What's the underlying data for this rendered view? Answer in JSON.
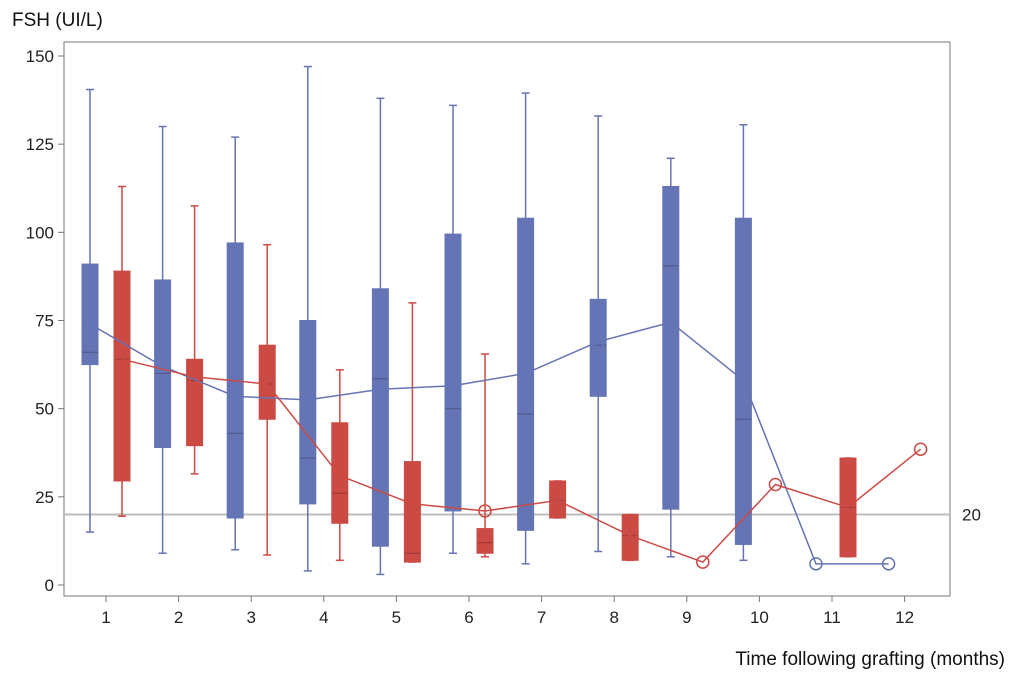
{
  "chart_data": {
    "type": "box",
    "ylabel": "FSH (UI/L)",
    "xlabel": "Time following grafting (months)",
    "ylim": [
      0,
      150
    ],
    "yticks": [
      0,
      25,
      50,
      75,
      100,
      125,
      150
    ],
    "categories": [
      "1",
      "2",
      "3",
      "4",
      "5",
      "6",
      "7",
      "8",
      "9",
      "10",
      "11",
      "12"
    ],
    "reference_line": {
      "value": 20,
      "label": "20"
    },
    "grid": false,
    "colors": {
      "blue": "#6474b4",
      "red": "#cc4a44",
      "axis": "#777777",
      "refline": "#bcbcbc"
    },
    "series": [
      {
        "color": "blue",
        "boxes": [
          {
            "x": 1,
            "min": 15,
            "q1": 62.5,
            "median": 66,
            "q3": 91,
            "max": 140.5
          },
          {
            "x": 2,
            "min": 9,
            "q1": 39,
            "median": 60,
            "q3": 86.5,
            "max": 130
          },
          {
            "x": 3,
            "min": 10,
            "q1": 19,
            "median": 43,
            "q3": 97,
            "max": 127
          },
          {
            "x": 4,
            "min": 4,
            "q1": 23,
            "median": 36,
            "q3": 75,
            "max": 147
          },
          {
            "x": 5,
            "min": 3,
            "q1": 11,
            "median": 58.5,
            "q3": 84,
            "max": 138
          },
          {
            "x": 6,
            "min": 9,
            "q1": 21,
            "median": 50,
            "q3": 99.5,
            "max": 136
          },
          {
            "x": 7,
            "min": 6,
            "q1": 15.5,
            "median": 48.5,
            "q3": 104,
            "max": 139.5
          },
          {
            "x": 8,
            "min": 9.5,
            "q1": 53.5,
            "median": 68,
            "q3": 81,
            "max": 133
          },
          {
            "x": 9,
            "min": 8,
            "q1": 21.5,
            "median": 90.5,
            "q3": 113,
            "max": 121
          },
          {
            "x": 10,
            "min": 7,
            "q1": 11.5,
            "median": 47,
            "q3": 104,
            "max": 130.5
          }
        ],
        "means": [
          {
            "x": 1,
            "y": 74
          },
          {
            "x": 2,
            "y": 62
          },
          {
            "x": 3,
            "y": 53.5
          },
          {
            "x": 4,
            "y": 52.5
          },
          {
            "x": 5,
            "y": 55.5
          },
          {
            "x": 6,
            "y": 56.5
          },
          {
            "x": 7,
            "y": 60
          },
          {
            "x": 8,
            "y": 69
          },
          {
            "x": 9,
            "y": 74.5
          },
          {
            "x": 10,
            "y": 58
          },
          {
            "x": 11,
            "y": 6
          },
          {
            "x": 12,
            "y": 6
          }
        ]
      },
      {
        "color": "red",
        "boxes": [
          {
            "x": 1,
            "min": 19.5,
            "q1": 29.5,
            "median": 64,
            "q3": 89,
            "max": 113
          },
          {
            "x": 2,
            "min": 31.5,
            "q1": 39.5,
            "median": 58,
            "q3": 64,
            "max": 107.5
          },
          {
            "x": 3,
            "min": 8.5,
            "q1": 47,
            "median": 57,
            "q3": 68,
            "max": 96.5
          },
          {
            "x": 4,
            "min": 7,
            "q1": 17.5,
            "median": 26,
            "q3": 46,
            "max": 61
          },
          {
            "x": 5,
            "min": 6.5,
            "q1": 6.5,
            "median": 9,
            "q3": 35,
            "max": 80
          },
          {
            "x": 6,
            "min": 8,
            "q1": 9,
            "median": 12,
            "q3": 16,
            "max": 65.5
          },
          {
            "x": 7,
            "min": 19,
            "q1": 19,
            "median": 24,
            "q3": 29.5,
            "max": 29.5
          },
          {
            "x": 8,
            "min": 7,
            "q1": 7,
            "median": 14,
            "q3": 20,
            "max": 20
          },
          {
            "x": 11,
            "min": 8,
            "q1": 8,
            "median": 22,
            "q3": 36,
            "max": 36
          }
        ],
        "means": [
          {
            "x": 1,
            "y": 64
          },
          {
            "x": 2,
            "y": 59
          },
          {
            "x": 3,
            "y": 57
          },
          {
            "x": 4,
            "y": 31
          },
          {
            "x": 5,
            "y": 23
          },
          {
            "x": 6,
            "y": 21
          },
          {
            "x": 7,
            "y": 24
          },
          {
            "x": 8,
            "y": 14
          },
          {
            "x": 9,
            "y": 6.5
          },
          {
            "x": 10,
            "y": 28.5
          },
          {
            "x": 11,
            "y": 22
          },
          {
            "x": 12,
            "y": 38.5
          }
        ]
      }
    ]
  }
}
